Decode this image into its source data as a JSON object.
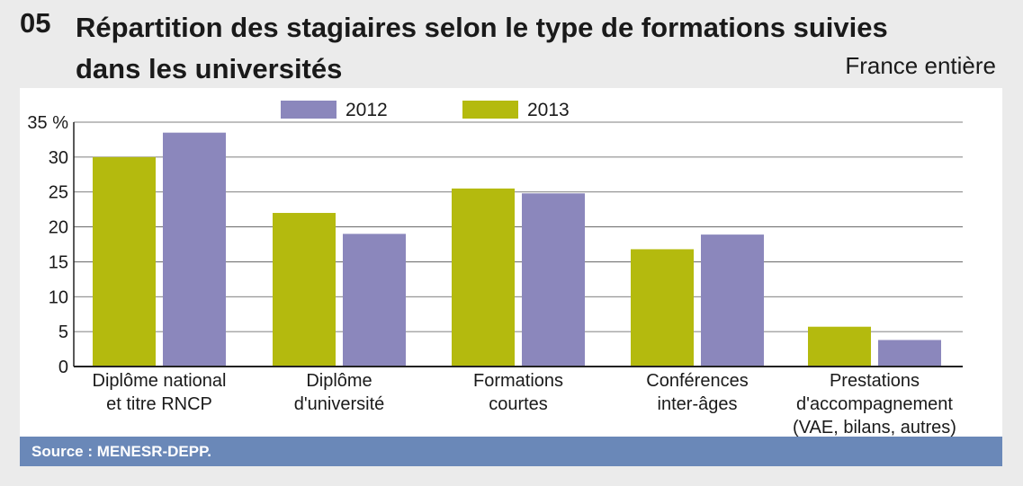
{
  "header": {
    "number": "05",
    "title": "Répartition des stagiaires selon le type de formations suivies dans les universités",
    "subtitle": "France entière"
  },
  "footer": {
    "source": "Source : MENESR-DEPP."
  },
  "colors": {
    "y2012": "#8b87bc",
    "y2013": "#b4ba0e",
    "source_bar": "#6a88b8"
  },
  "chart_data": {
    "type": "bar",
    "categories": [
      "Diplôme national\net titre RNCP",
      "Diplôme\nd'université",
      "Formations\ncourtes",
      "Conférences\ninter-âges",
      "Prestations\nd'accompagnement\n(VAE, bilans, autres)"
    ],
    "series": [
      {
        "name": "2013",
        "values": [
          30,
          22,
          25.5,
          16.8,
          5.7
        ]
      },
      {
        "name": "2012",
        "values": [
          33.5,
          19,
          24.8,
          18.9,
          3.8
        ]
      }
    ],
    "legend": [
      "2012",
      "2013"
    ],
    "legend_position": "top",
    "yticks": [
      "35 %",
      "30",
      "25",
      "20",
      "15",
      "10",
      "5",
      "0"
    ],
    "ylim": [
      0,
      35
    ],
    "grid": true
  }
}
